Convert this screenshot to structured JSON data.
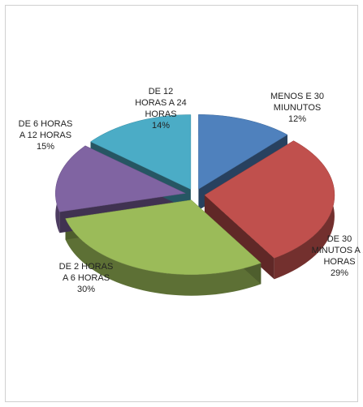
{
  "chart_data": {
    "type": "pie",
    "categories": [
      "MENOS E 30 MIUNUTOS",
      "DE 30 MINUTOS A 2 HORAS",
      "DE 2 HORAS A 6 HORAS",
      "DE 6 HORAS A 12 HORAS",
      "DE 12 HORAS A 24 HORAS"
    ],
    "values": [
      12,
      29,
      30,
      15,
      14
    ],
    "value_labels": [
      "12%",
      "29%",
      "30%",
      "15%",
      "14%"
    ],
    "colors": [
      "#4f81bd",
      "#c0504d",
      "#9bbb59",
      "#8064a2",
      "#4bacc6"
    ]
  }
}
